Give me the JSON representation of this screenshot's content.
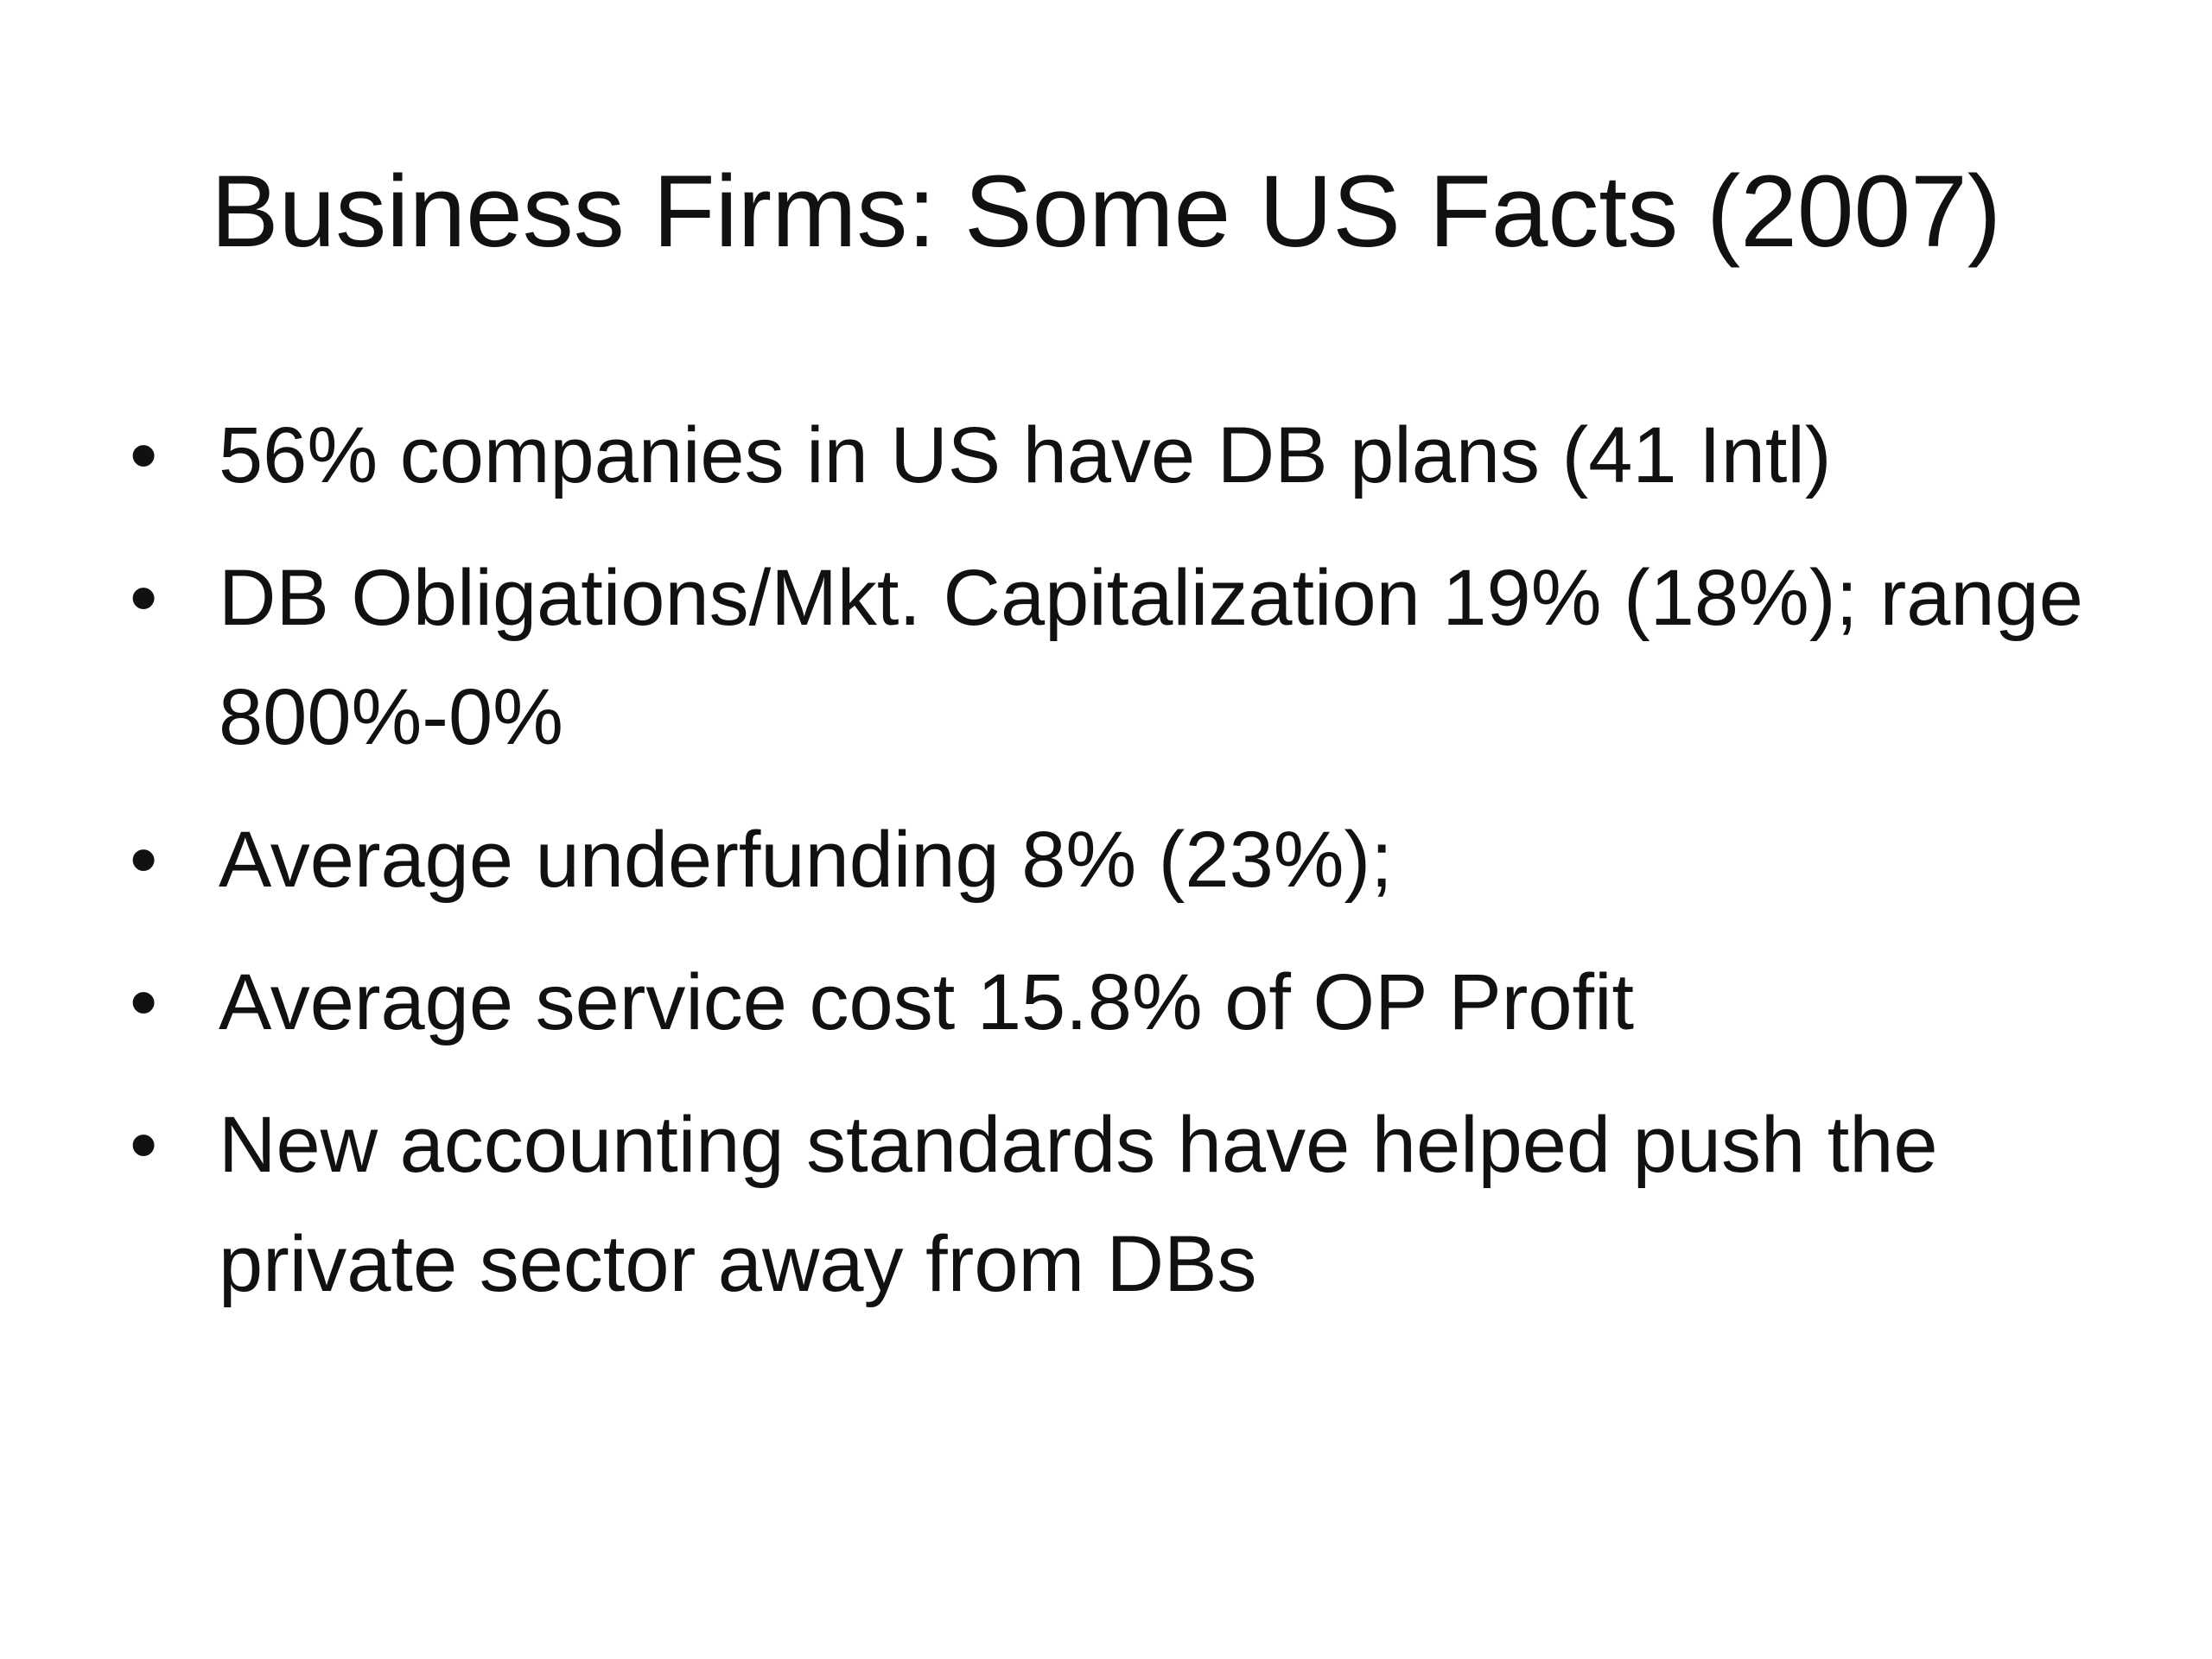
{
  "slide": {
    "title": "Business Firms: Some US Facts (2007)",
    "bullet_symbol": "•",
    "bullets": [
      {
        "text": "56% companies in US have DB plans (41 Intl)"
      },
      {
        "text": "DB Obligations/Mkt. Capitalization 19% (18%); range 800%-0%"
      },
      {
        "text": "Average underfunding 8% (23%);"
      },
      {
        "text": "Average service cost 15.8% of OP Profit"
      },
      {
        "text": "New accounting standards have helped push the private sector away from DBs"
      }
    ]
  }
}
